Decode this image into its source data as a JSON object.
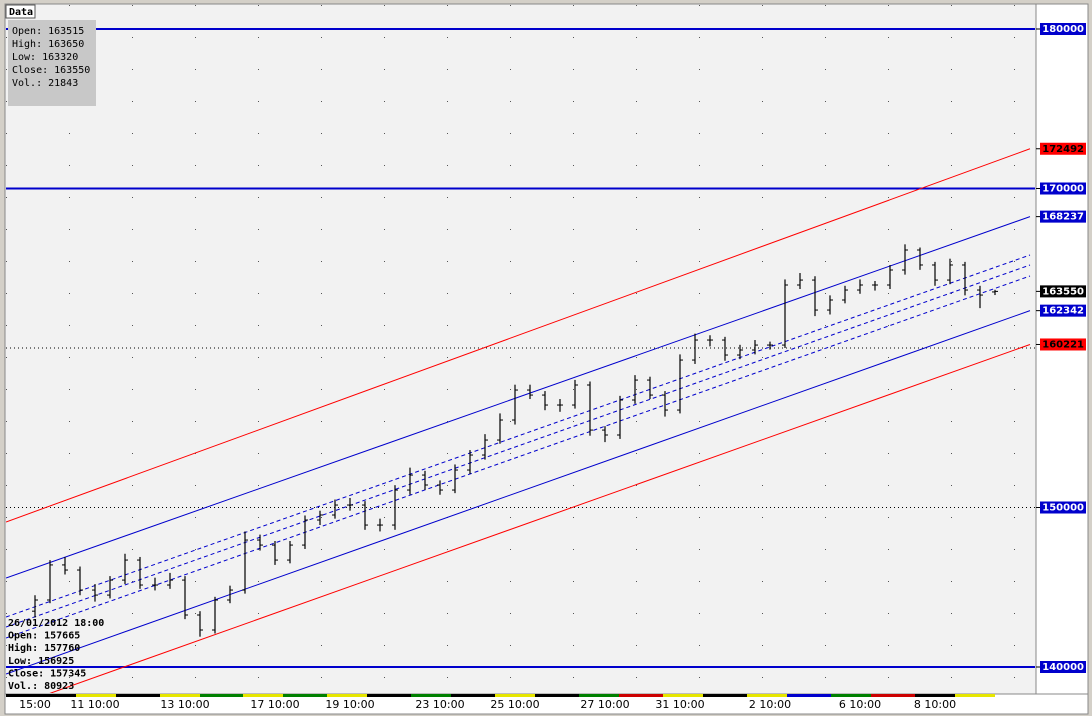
{
  "chart_data": {
    "type": "ohlc",
    "ylim": [
      138370,
      181505
    ],
    "yticks": [
      180000,
      172492,
      170000,
      168237,
      163550,
      162342,
      160221,
      150000,
      140000
    ],
    "ytick_colors": [
      "#0000cc",
      "#ff0000",
      "#0000cc",
      "#0000cc",
      "#000000",
      "#0000cc",
      "#ff0000",
      "#0000cc",
      "#0000cc"
    ],
    "hlines": [
      {
        "value": 180000,
        "color": "#0000cc",
        "style": "solid"
      },
      {
        "value": 170000,
        "color": "#0000cc",
        "style": "solid"
      },
      {
        "value": 140000,
        "color": "#0000cc",
        "style": "solid"
      },
      {
        "value": 160000,
        "color": "#000000",
        "style": "dotted"
      },
      {
        "value": 150000,
        "color": "#000000",
        "style": "dotted"
      }
    ],
    "channels": [
      {
        "color": "#ff0000",
        "style": "solid",
        "values": [
          149091,
          172492
        ]
      },
      {
        "color": "#0000cc",
        "style": "solid",
        "values": [
          145580,
          168237
        ]
      },
      {
        "color": "#0000cc",
        "style": "dashed",
        "values": [
          143135,
          165831
        ]
      },
      {
        "color": "#0000cc",
        "style": "dashed",
        "values": [
          142508,
          165204
        ]
      },
      {
        "color": "#0000cc",
        "style": "dashed",
        "values": [
          141818,
          164514
        ]
      },
      {
        "color": "#0000cc",
        "style": "solid",
        "values": [
          139561,
          162342
        ]
      },
      {
        "color": "#ff0000",
        "style": "solid",
        "values": [
          137367,
          160221
        ]
      }
    ],
    "categories": [
      "15:00",
      null,
      null,
      null,
      "11 10:00",
      null,
      null,
      null,
      null,
      null,
      "13 10:00",
      null,
      null,
      null,
      null,
      null,
      "17 10:00",
      null,
      null,
      null,
      null,
      "19 10:00",
      null,
      null,
      null,
      null,
      null,
      "23 10:00",
      null,
      null,
      null,
      null,
      "25 10:00",
      null,
      null,
      null,
      null,
      null,
      "27 10:00",
      null,
      null,
      null,
      null,
      "31 10:00",
      null,
      null,
      null,
      null,
      null,
      "2 10:00",
      null,
      null,
      null,
      null,
      null,
      "6 10:00",
      null,
      null,
      null,
      null,
      "8 10:00",
      null,
      null,
      null,
      null
    ],
    "open": [
      143500,
      144200,
      146400,
      146080,
      144825,
      144510,
      145450,
      146705,
      145140,
      145140,
      145450,
      143260,
      142320,
      144200,
      144825,
      147960,
      147645,
      146705,
      147645,
      149215,
      149530,
      150155,
      150155,
      148900,
      148900,
      151095,
      152035,
      151410,
      151095,
      152350,
      153290,
      154230,
      155485,
      157365,
      157050,
      156425,
      156425,
      157680,
      154855,
      154545,
      156740,
      157990,
      157050,
      156110,
      159245,
      160500,
      160500,
      159560,
      159875,
      160185,
      160185,
      163950,
      164260,
      162380,
      163010,
      163635,
      163950,
      163950,
      164890,
      166145,
      165205,
      164260,
      165205,
      163635,
      163515
    ],
    "high": [
      144500,
      146700,
      146900,
      146300,
      145200,
      145700,
      147100,
      146900,
      145600,
      145900,
      145700,
      143500,
      144400,
      145100,
      148500,
      148300,
      147900,
      147900,
      149500,
      149800,
      150500,
      150600,
      150400,
      149300,
      151400,
      152500,
      152300,
      151700,
      152700,
      153600,
      154600,
      155900,
      157700,
      157700,
      157300,
      156800,
      158000,
      157900,
      155100,
      157000,
      158300,
      158200,
      157300,
      159600,
      160900,
      160800,
      160700,
      160200,
      160500,
      160400,
      164300,
      164700,
      164500,
      163300,
      163900,
      164300,
      164200,
      165200,
      166500,
      166300,
      165400,
      165600,
      165400,
      163900,
      163650
    ],
    "low": [
      143100,
      144000,
      145800,
      144500,
      144100,
      144300,
      145200,
      144900,
      144800,
      144900,
      143000,
      141900,
      142100,
      144000,
      144600,
      147300,
      146400,
      146500,
      147400,
      148900,
      149300,
      149800,
      148600,
      148500,
      148600,
      150800,
      151100,
      150800,
      150900,
      152100,
      153000,
      154000,
      155200,
      156800,
      156100,
      156000,
      156200,
      154500,
      154100,
      154300,
      156500,
      156800,
      155700,
      155900,
      159000,
      160100,
      159200,
      159300,
      159600,
      159900,
      160000,
      163700,
      162000,
      162100,
      162800,
      163400,
      163600,
      163700,
      164600,
      164900,
      163900,
      164000,
      163300,
      162500,
      163320
    ],
    "close": [
      144200,
      146400,
      146080,
      144825,
      144510,
      145450,
      146705,
      145140,
      145140,
      145450,
      143260,
      142320,
      144200,
      144825,
      147960,
      147645,
      146705,
      147645,
      149215,
      149530,
      150155,
      150155,
      148900,
      148900,
      151095,
      152035,
      151410,
      151095,
      152350,
      153290,
      154230,
      155485,
      157365,
      157050,
      156425,
      156425,
      157680,
      154855,
      154545,
      156740,
      157990,
      157050,
      156110,
      159245,
      160500,
      160500,
      159560,
      159875,
      160185,
      160185,
      163950,
      164260,
      162380,
      163010,
      163635,
      163950,
      163950,
      164890,
      166145,
      165205,
      164260,
      165205,
      163635,
      163320,
      163550
    ],
    "info_tab": "Data",
    "info_box": [
      "Open: 163515",
      "High: 163650",
      "Low: 163320",
      "Close: 163550",
      "Vol.: 21843"
    ],
    "cursor_info": [
      "26/01/2012 18:00",
      "Open: 157665",
      "High: 157760",
      "Low: 156925",
      "Close: 157345",
      "Vol.: 80923"
    ]
  }
}
